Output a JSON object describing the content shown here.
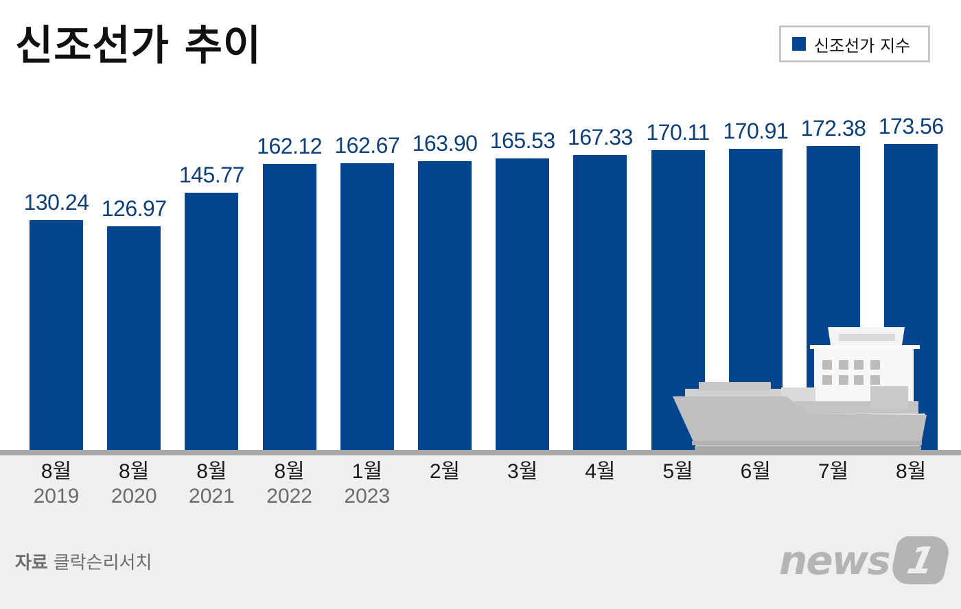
{
  "header": {
    "title": "신조선가 추이"
  },
  "legend": {
    "items": [
      {
        "label": "신조선가 지수",
        "color": "#03458f"
      }
    ]
  },
  "chart_data": {
    "type": "bar",
    "title": "신조선가 추이",
    "categories": [
      "8월 2019",
      "8월 2020",
      "8월 2021",
      "8월 2022",
      "1월 2023",
      "2월",
      "3월",
      "4월",
      "5월",
      "6월",
      "7월",
      "8월"
    ],
    "series": [
      {
        "name": "신조선가 지수",
        "values": [
          130.24,
          126.97,
          145.77,
          162.12,
          162.67,
          163.9,
          165.53,
          167.33,
          170.11,
          170.91,
          172.38,
          173.56
        ],
        "color": "#03458f"
      }
    ],
    "value_labels": [
      "130.24",
      "126.97",
      "145.77",
      "162.12",
      "162.67",
      "163.90",
      "165.53",
      "167.33",
      "170.11",
      "170.91",
      "172.38",
      "173.56"
    ],
    "xlabel": "",
    "ylabel": "",
    "ylim": [
      0,
      180
    ],
    "grid": false,
    "legend_position": "top-right"
  },
  "xaxis": {
    "ticks": [
      {
        "month": "8월",
        "year": "2019"
      },
      {
        "month": "8월",
        "year": "2020"
      },
      {
        "month": "8월",
        "year": "2021"
      },
      {
        "month": "8월",
        "year": "2022"
      },
      {
        "month": "1월",
        "year": "2023"
      },
      {
        "month": "2월",
        "year": ""
      },
      {
        "month": "3월",
        "year": ""
      },
      {
        "month": "4월",
        "year": ""
      },
      {
        "month": "5월",
        "year": ""
      },
      {
        "month": "6월",
        "year": ""
      },
      {
        "month": "7월",
        "year": ""
      },
      {
        "month": "8월",
        "year": ""
      }
    ]
  },
  "footer": {
    "source_label": "자료",
    "source_name": "클락슨리서치",
    "logo_text": "news",
    "logo_mark": "1"
  }
}
